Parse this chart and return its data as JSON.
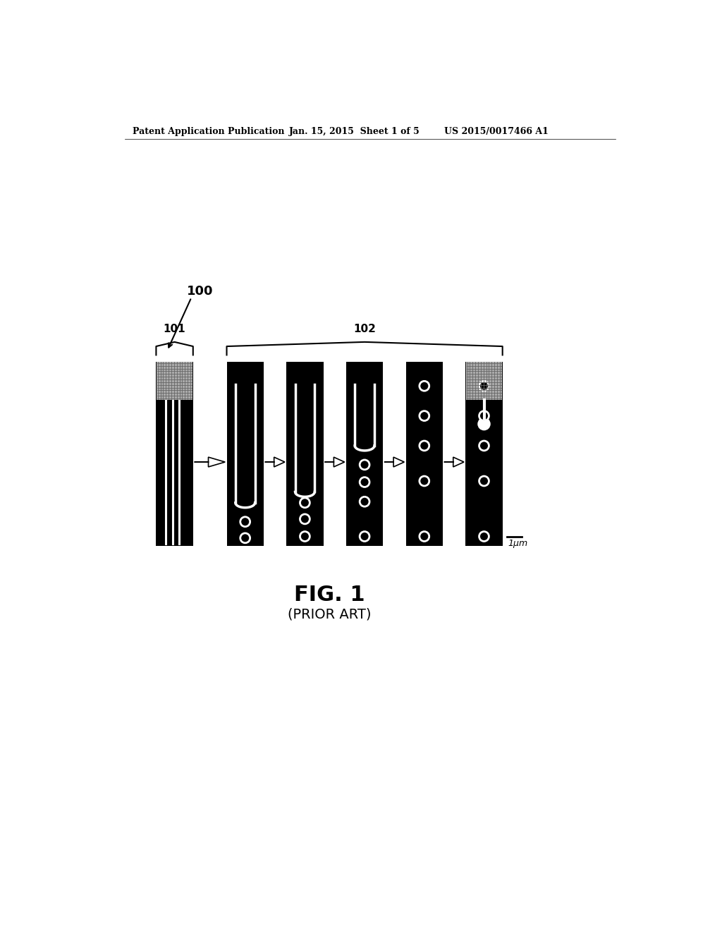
{
  "header_left": "Patent Application Publication",
  "header_mid": "Jan. 15, 2015  Sheet 1 of 5",
  "header_right": "US 2015/0017466 A1",
  "label_100": "100",
  "label_101": "101",
  "label_102": "102",
  "fig_label": "FIG. 1",
  "fig_sublabel": "(PRIOR ART)",
  "scale_label": "1μm",
  "bg_color": "#ffffff",
  "black": "#000000",
  "white": "#ffffff"
}
